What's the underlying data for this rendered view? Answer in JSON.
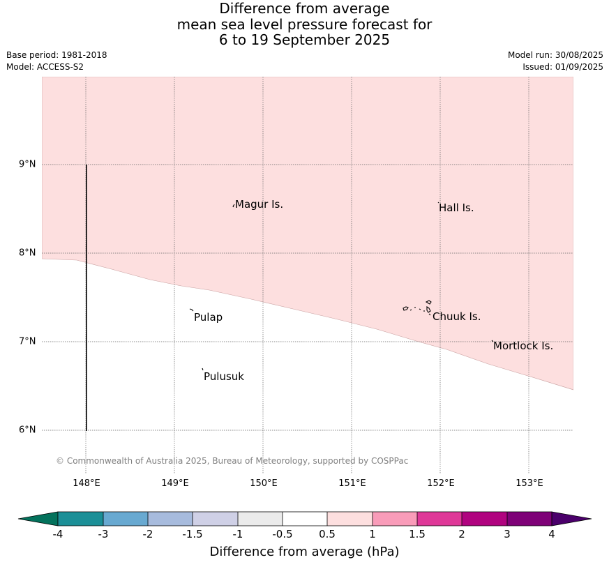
{
  "title": {
    "line1": "Difference from average",
    "line2": "mean sea level pressure forecast for",
    "line3": "6 to 19 September 2025"
  },
  "meta": {
    "base_period": "Base period: 1981-2018",
    "model": "Model: ACCESS-S2",
    "model_run": "Model run: 30/08/2025",
    "issued": "Issued: 01/09/2025"
  },
  "map": {
    "lat_labels": [
      "9°N",
      "8°N",
      "7°N",
      "6°N"
    ],
    "lon_labels": [
      "148°E",
      "149°E",
      "150°E",
      "151°E",
      "152°E",
      "153°E"
    ],
    "places": [
      "Magur Is.",
      "Hall Is.",
      "Pulap",
      "Chuuk Is.",
      "Mortlock Is.",
      "Pulusuk"
    ],
    "anomaly_region_color": "#fddfdf",
    "anomaly_region_category": "0.5 to 1 hPa",
    "copyright": "© Commonwealth of Australia 2025, Bureau of Meteorology, supported by COSPPac"
  },
  "legend": {
    "ticks": [
      "-4",
      "-3",
      "-2",
      "-1.5",
      "-1",
      "-0.5",
      "0.5",
      "1",
      "1.5",
      "2",
      "3",
      "4"
    ],
    "colors": [
      "#03725c",
      "#1b8f97",
      "#68a9d1",
      "#a7bbdd",
      "#cfd0e6",
      "#ebebeb",
      "#ffffff",
      "#fddfdf",
      "#f99cb9",
      "#df3898",
      "#b0037f",
      "#7e0177",
      "#4b006b"
    ],
    "label": "Difference from average (hPa)"
  }
}
